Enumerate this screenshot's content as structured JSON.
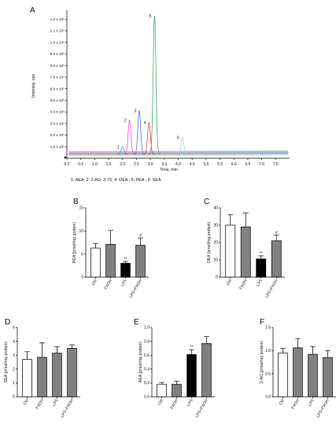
{
  "chart_data": [
    {
      "panel": "A",
      "type": "line",
      "xlabel": "Time, min",
      "ylabel": "Intensity, cps",
      "xlim": [
        0.0,
        8.0
      ],
      "ylim": [
        0,
        1250000
      ],
      "x_ticks": [
        "0.0",
        "0.5",
        "1.0",
        "1.5",
        "2.0",
        "2.5",
        "3.0",
        "3.5",
        "4.0",
        "4.5",
        "5.0",
        "5.5",
        "6.0",
        "6.5",
        "7.0",
        "7.5"
      ],
      "y_ticks": [
        "1.0 x 10⁵",
        "2.0 x 10⁵",
        "3.0 x 10⁵",
        "4.0 x 10⁵",
        "5.0 x 10⁵",
        "6.0 x 10⁵",
        "7.0 x 10⁵",
        "8.0 x 10⁵",
        "9.0 x 10⁵",
        "1.0 x 10⁶",
        "1.1 x 10⁶",
        "1.2 x 10⁶"
      ],
      "peaks": [
        {
          "label": "1",
          "rt": 2.0,
          "height": 100000,
          "color": "#2aa5a0"
        },
        {
          "label": "2",
          "rt": 2.25,
          "height": 330000,
          "color": "#e040d0"
        },
        {
          "label": "3",
          "rt": 2.6,
          "height": 410000,
          "color": "#4060e0"
        },
        {
          "label": "4",
          "rt": 2.95,
          "height": 310000,
          "color": "#e03030"
        },
        {
          "label": "5",
          "rt": 3.15,
          "height": 1230000,
          "color": "#2aa060"
        },
        {
          "label": "6",
          "rt": 4.15,
          "height": 180000,
          "color": "#8fd4f0"
        }
      ],
      "caption": "1: AEA;  2: 2-AG;  3: IS; 4: OEA ; 5: PEA ; 6: SEA"
    },
    {
      "panel": "B",
      "type": "bar",
      "categories": [
        "Ctrl",
        "FXOH",
        "LPS",
        "LPS+FXOH"
      ],
      "values": [
        6.3,
        7.1,
        3.0,
        6.9
      ],
      "errors": [
        1.0,
        3.0,
        0.4,
        1.6
      ],
      "colors": [
        "#ffffff",
        "#808080",
        "#000000",
        "#808080"
      ],
      "sig": [
        "",
        "",
        "**",
        "#"
      ],
      "ylabel": "PEA (pmol/mg protein)",
      "ylim": [
        0,
        15
      ],
      "yticks": [
        "0",
        "5",
        "10",
        "15"
      ]
    },
    {
      "panel": "C",
      "type": "bar",
      "categories": [
        "Ctrl",
        "FXOH",
        "LPS",
        "LPS+FXOH"
      ],
      "values": [
        30.0,
        29.0,
        10.5,
        21.0
      ],
      "errors": [
        6.0,
        8.0,
        1.8,
        3.2
      ],
      "colors": [
        "#ffffff",
        "#808080",
        "#000000",
        "#808080"
      ],
      "sig": [
        "",
        "",
        "**",
        "#"
      ],
      "ylabel": "OEA (pmol/mg protein)",
      "ylim": [
        0,
        40
      ],
      "yticks": [
        "0",
        "10",
        "20",
        "30",
        "40"
      ]
    },
    {
      "panel": "D",
      "type": "bar",
      "categories": [
        "Ctrl",
        "FXOH",
        "LPS",
        "LPS+FXOH"
      ],
      "values": [
        2.7,
        2.85,
        3.15,
        3.5
      ],
      "errors": [
        0.55,
        1.05,
        0.45,
        0.25
      ],
      "colors": [
        "#ffffff",
        "#808080",
        "#808080",
        "#808080"
      ],
      "sig": [
        "",
        "",
        "",
        ""
      ],
      "ylabel": "SEA (pmol/mg protein)",
      "ylim": [
        0,
        5
      ],
      "yticks": [
        "0",
        "1",
        "2",
        "3",
        "4",
        "5"
      ]
    },
    {
      "panel": "E",
      "type": "bar",
      "categories": [
        "Ctrl",
        "FXOH",
        "LPS",
        "LPS+FXOH"
      ],
      "values": [
        0.18,
        0.18,
        0.61,
        0.77
      ],
      "errors": [
        0.025,
        0.045,
        0.07,
        0.1
      ],
      "colors": [
        "#ffffff",
        "#808080",
        "#000000",
        "#808080"
      ],
      "sig": [
        "",
        "",
        "**",
        ""
      ],
      "ylabel": "AEA (pmol/mg protein)",
      "ylim": [
        0,
        1.0
      ],
      "yticks": [
        "0.0",
        "0.2",
        "0.4",
        "0.6",
        "0.8",
        "1.0"
      ]
    },
    {
      "panel": "F",
      "type": "bar",
      "categories": [
        "Ctrl",
        "FXOH",
        "LPS",
        "LPS+FXOH"
      ],
      "values": [
        0.95,
        1.06,
        0.92,
        0.85
      ],
      "errors": [
        0.1,
        0.2,
        0.17,
        0.15
      ],
      "colors": [
        "#ffffff",
        "#808080",
        "#808080",
        "#808080"
      ],
      "sig": [
        "",
        "",
        "",
        ""
      ],
      "ylabel": "2-AG (pmol/mg protein)",
      "ylim": [
        0,
        1.5
      ],
      "yticks": [
        "0.0",
        "0.5",
        "1.0",
        "1.5"
      ]
    }
  ]
}
